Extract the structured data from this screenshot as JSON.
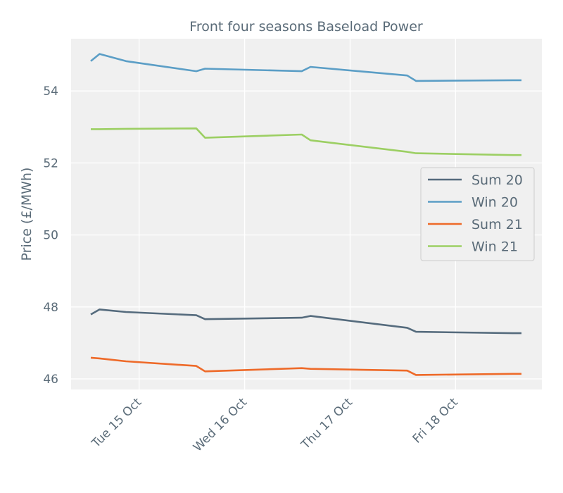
{
  "chart_data": {
    "type": "line",
    "title": "Front four seasons Baseload Power",
    "xlabel": "",
    "ylabel": "Price (£/MWh)",
    "ylim": [
      45.7,
      55.5
    ],
    "yticks": [
      46,
      48,
      50,
      52,
      54
    ],
    "ytick_labels": [
      "46",
      "48",
      "50",
      "52",
      "54"
    ],
    "xticks": [
      "2019-10-15",
      "2019-10-16",
      "2019-10-17",
      "2019-10-18"
    ],
    "xtick_labels": [
      "Tue 15 Oct",
      "Wed 16 Oct",
      "Thu 17 Oct",
      "Fri 18 Oct"
    ],
    "x": [
      "2019-10-14 13:00",
      "2019-10-14 15:00",
      "2019-10-14 21:00",
      "2019-10-15 13:00",
      "2019-10-15 15:00",
      "2019-10-16 13:00",
      "2019-10-16 15:00",
      "2019-10-17 13:00",
      "2019-10-17 15:00",
      "2019-10-18 13:00",
      "2019-10-18 15:00"
    ],
    "series": [
      {
        "name": "Sum 20",
        "color": "#556b7d",
        "values": [
          47.79,
          47.93,
          47.86,
          47.77,
          47.66,
          47.7,
          47.75,
          47.42,
          47.31,
          47.27,
          47.27
        ]
      },
      {
        "name": "Win 20",
        "color": "#5b9ec6",
        "values": [
          54.83,
          55.03,
          54.83,
          54.55,
          54.62,
          54.55,
          54.67,
          54.43,
          54.28,
          54.3,
          54.3
        ]
      },
      {
        "name": "Sum 21",
        "color": "#ee6a29",
        "values": [
          46.59,
          46.57,
          46.49,
          46.36,
          46.21,
          46.3,
          46.28,
          46.23,
          46.11,
          46.14,
          46.14
        ]
      },
      {
        "name": "Win 21",
        "color": "#9ccf63",
        "values": [
          52.94,
          52.94,
          52.95,
          52.96,
          52.7,
          52.79,
          52.63,
          52.31,
          52.27,
          52.22,
          52.22
        ]
      }
    ],
    "grid": true,
    "legend_position": "center-right"
  }
}
